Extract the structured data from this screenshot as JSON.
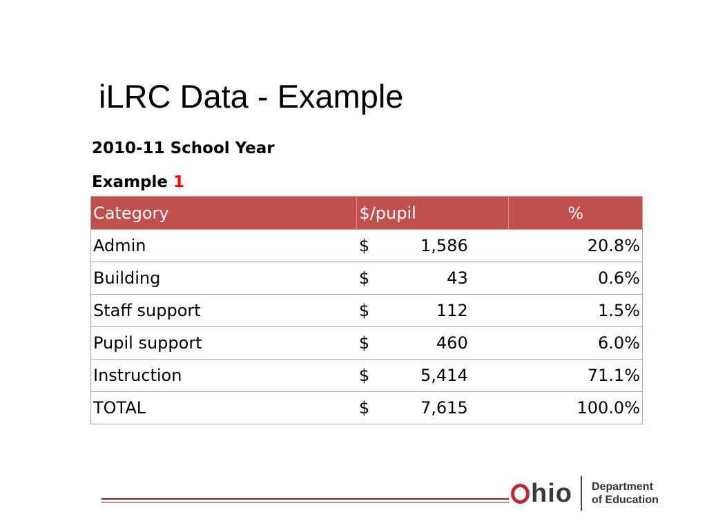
{
  "slide": {
    "title": "iLRC Data - Example",
    "school_year": "2010-11 School Year",
    "example_label": "Example",
    "example_number": "1"
  },
  "table": {
    "headers": [
      "Category",
      "$/pupil",
      "%"
    ],
    "currency_symbol": "$",
    "rows": [
      {
        "category": "Admin",
        "per_pupil": "1,586",
        "percent": "20.8%"
      },
      {
        "category": "Building",
        "per_pupil": "43",
        "percent": "0.6%"
      },
      {
        "category": "Staff support",
        "per_pupil": "112",
        "percent": "1.5%"
      },
      {
        "category": "Pupil support",
        "per_pupil": "460",
        "percent": "6.0%"
      },
      {
        "category": "Instruction",
        "per_pupil": "5,414",
        "percent": "71.1%"
      },
      {
        "category": "TOTAL",
        "per_pupil": "7,615",
        "percent": "100.0%"
      }
    ]
  },
  "logo": {
    "ohio_text": "hio",
    "dept_line1": "Department",
    "dept_line2": "of Education"
  },
  "colors": {
    "header_bg": "#c0504d",
    "accent_red": "#ff0000",
    "logo_red": "#c0282d"
  }
}
